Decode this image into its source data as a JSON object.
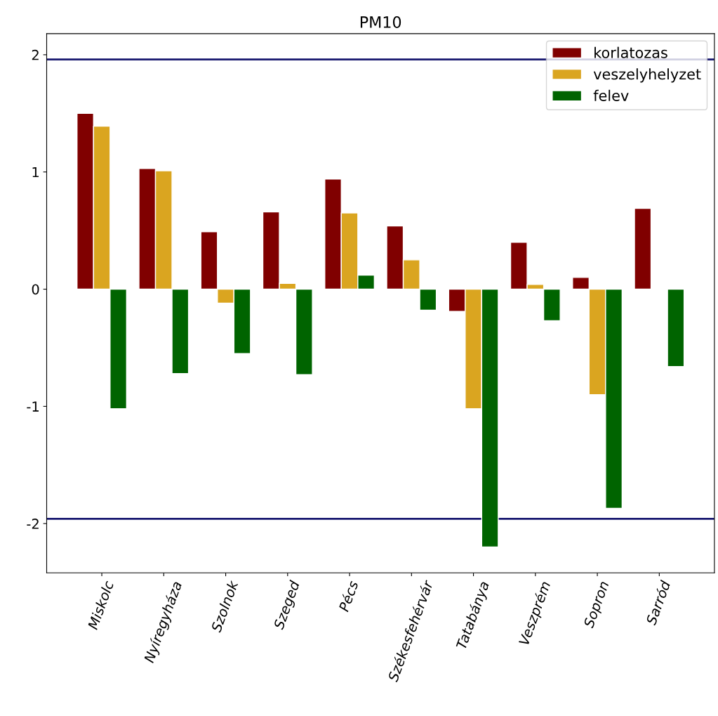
{
  "chart_data": {
    "type": "bar",
    "title": "PM10",
    "categories": [
      "Miskolc",
      "Nyíregyháza",
      "Szolnok",
      "Szeged",
      "Pécs",
      "Székesfehérvár",
      "Tatabánya",
      "Veszprém",
      "Sopron",
      "Sarród"
    ],
    "series": [
      {
        "name": "korlatozas",
        "color": "#800000",
        "values": [
          1.5,
          1.03,
          0.49,
          0.66,
          0.94,
          0.54,
          -0.19,
          0.4,
          0.1,
          0.69
        ]
      },
      {
        "name": "veszelyhelyzet",
        "color": "#daa520",
        "values": [
          1.39,
          1.01,
          -0.12,
          0.05,
          0.65,
          0.25,
          -1.02,
          0.04,
          -0.9,
          null
        ]
      },
      {
        "name": "felev",
        "color": "#006400",
        "values": [
          -1.02,
          -0.72,
          -0.55,
          -0.73,
          0.12,
          -0.18,
          -2.2,
          -0.27,
          -1.87,
          -0.66
        ]
      }
    ],
    "ylim": [
      -2.42,
      2.18
    ],
    "yticks": [
      -2,
      -1,
      0,
      1,
      2
    ],
    "ref_lines": [
      {
        "axis": "y",
        "value": 1.96,
        "color": "#191970"
      },
      {
        "axis": "y",
        "value": -1.96,
        "color": "#191970"
      }
    ],
    "legend": "top right",
    "grid": false
  }
}
